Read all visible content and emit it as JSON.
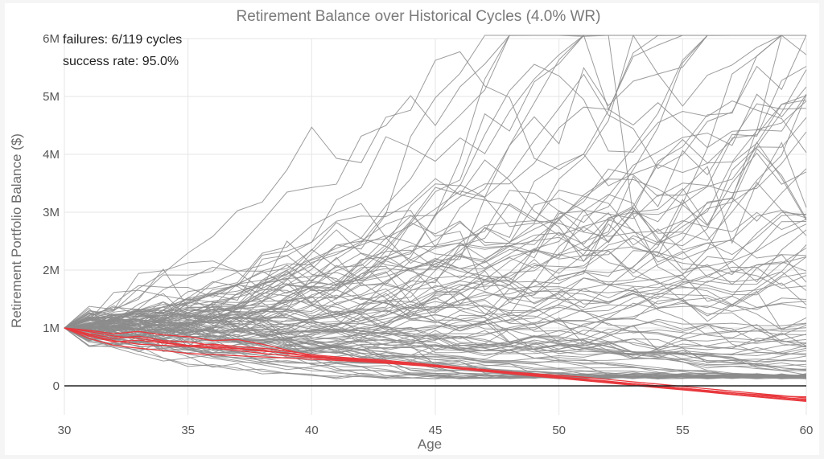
{
  "chart_data": {
    "type": "line",
    "title": "Retirement Balance over Historical Cycles (4.0% WR)",
    "xlabel": "Age",
    "ylabel": "Retirement Portfolio Balance ($)",
    "xlim": [
      30,
      60
    ],
    "ylim": [
      -500000,
      6000000
    ],
    "xticks": [
      30,
      35,
      40,
      45,
      50,
      55,
      60
    ],
    "xtick_labels": [
      "30",
      "35",
      "40",
      "45",
      "50",
      "55",
      "60"
    ],
    "yticks": [
      0,
      1000000,
      2000000,
      3000000,
      4000000,
      5000000,
      6000000
    ],
    "ytick_labels": [
      "0",
      "1M",
      "2M",
      "3M",
      "4M",
      "5M",
      "6M"
    ],
    "grid": true,
    "zero_line": true,
    "annotations": [
      "failures: 6/119 cycles",
      "success rate: 95.0%"
    ],
    "total_cycles": 119,
    "failed_cycles": 6,
    "success_rate_pct": 95.0,
    "colors": {
      "success": "#8c8c8c",
      "failure": "#e8383d",
      "zero_line": "#222222",
      "grid": "#e6e6e6"
    },
    "x": [
      30,
      31,
      32,
      33,
      34,
      35,
      36,
      37,
      38,
      39,
      40,
      41,
      42,
      43,
      44,
      45,
      46,
      47,
      48,
      49,
      50,
      51,
      52,
      53,
      54,
      55,
      56,
      57,
      58,
      59,
      60
    ],
    "failure_series": [
      {
        "status": "failed",
        "values": [
          1000000,
          820000,
          700000,
          650000,
          610000,
          560000,
          540000,
          520000,
          500000,
          480000,
          460000,
          440000,
          420000,
          390000,
          360000,
          330000,
          300000,
          270000,
          240000,
          210000,
          180000,
          150000,
          110000,
          70000,
          30000,
          -10000,
          -50000,
          -90000,
          -130000,
          -170000,
          -210000
        ]
      },
      {
        "status": "failed",
        "values": [
          1000000,
          900000,
          820000,
          860000,
          780000,
          760000,
          700000,
          650000,
          620000,
          560000,
          500000,
          470000,
          440000,
          410000,
          380000,
          340000,
          300000,
          260000,
          220000,
          180000,
          140000,
          100000,
          60000,
          20000,
          -20000,
          -60000,
          -90000,
          -120000,
          -150000,
          -180000,
          -190000
        ]
      },
      {
        "status": "failed",
        "values": [
          1000000,
          960000,
          900000,
          940000,
          880000,
          850000,
          780000,
          800000,
          720000,
          620000,
          520000,
          480000,
          450000,
          420000,
          390000,
          350000,
          310000,
          270000,
          230000,
          190000,
          150000,
          110000,
          70000,
          40000,
          0,
          -40000,
          -80000,
          -120000,
          -160000,
          -200000,
          -240000
        ]
      },
      {
        "status": "failed",
        "values": [
          1000000,
          880000,
          780000,
          720000,
          700000,
          680000,
          650000,
          610000,
          560000,
          520000,
          490000,
          460000,
          430000,
          400000,
          370000,
          330000,
          290000,
          250000,
          210000,
          170000,
          130000,
          90000,
          50000,
          10000,
          -30000,
          -70000,
          -110000,
          -150000,
          -190000,
          -230000,
          -270000
        ]
      },
      {
        "status": "failed",
        "values": [
          1000000,
          940000,
          860000,
          820000,
          760000,
          700000,
          670000,
          640000,
          600000,
          570000,
          510000,
          480000,
          460000,
          420000,
          380000,
          340000,
          300000,
          260000,
          220000,
          180000,
          140000,
          100000,
          60000,
          20000,
          -20000,
          -60000,
          -100000,
          -140000,
          -180000,
          -220000,
          -260000
        ]
      },
      {
        "status": "failed",
        "values": [
          1000000,
          860000,
          760000,
          790000,
          740000,
          690000,
          720000,
          680000,
          650000,
          600000,
          540000,
          500000,
          470000,
          440000,
          400000,
          360000,
          320000,
          280000,
          240000,
          200000,
          160000,
          120000,
          80000,
          40000,
          0,
          -40000,
          -80000,
          -120000,
          -160000,
          -200000,
          -230000
        ]
      }
    ]
  }
}
